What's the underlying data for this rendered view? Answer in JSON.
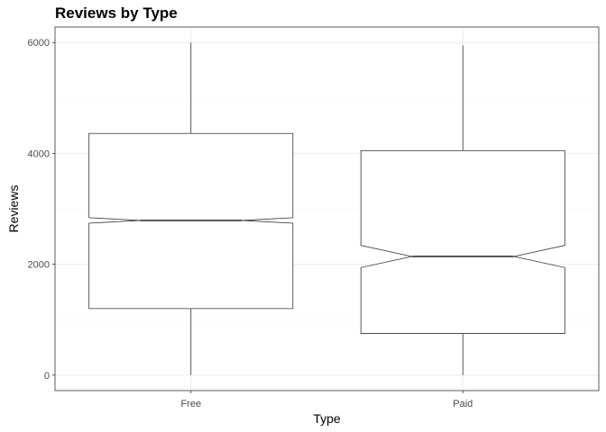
{
  "chart_data": {
    "type": "boxplot",
    "title": "Reviews by Type",
    "xlabel": "Type",
    "ylabel": "Reviews",
    "categories": [
      "Free",
      "Paid"
    ],
    "boxes": [
      {
        "category": "Free",
        "min": 0,
        "q1": 1200,
        "median": 2790,
        "q3": 4360,
        "max": 6000,
        "notch_low": 2740,
        "notch_high": 2840
      },
      {
        "category": "Paid",
        "min": 0,
        "q1": 750,
        "median": 2140,
        "q3": 4050,
        "max": 5950,
        "notch_low": 1940,
        "notch_high": 2340
      }
    ],
    "ylim": [
      -280,
      6280
    ],
    "yticks": [
      0,
      2000,
      4000,
      6000
    ],
    "ytick_labels": [
      "0",
      "2000",
      "4000",
      "6000"
    ],
    "notched": true,
    "grid": true
  }
}
